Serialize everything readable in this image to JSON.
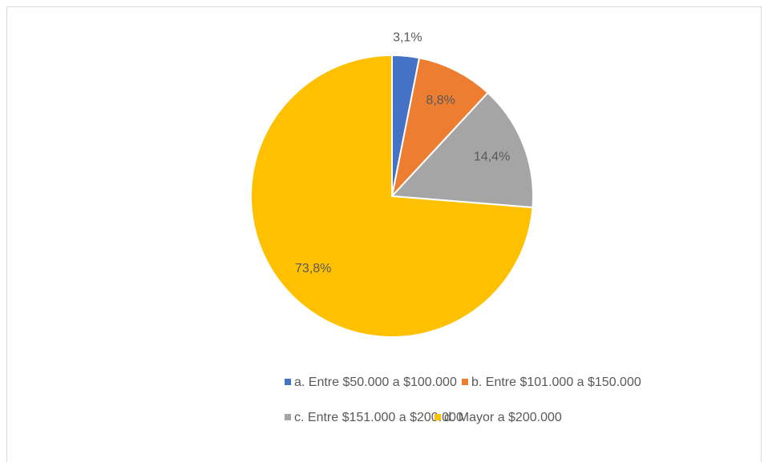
{
  "chart_data": {
    "type": "pie",
    "categories": [
      "a. Entre $50.000 a $100.000",
      "b. Entre $101.000 a $150.000",
      "c. Entre $151.000 a $200.000",
      "d. Mayor a $200.000"
    ],
    "values": [
      3.1,
      8.8,
      14.4,
      73.8
    ],
    "value_labels": [
      "3,1%",
      "8,8%",
      "14,4%",
      "73,8%"
    ],
    "colors": [
      "#4472c4",
      "#ed7d31",
      "#a5a5a5",
      "#ffc000"
    ],
    "legend": "bottom"
  }
}
